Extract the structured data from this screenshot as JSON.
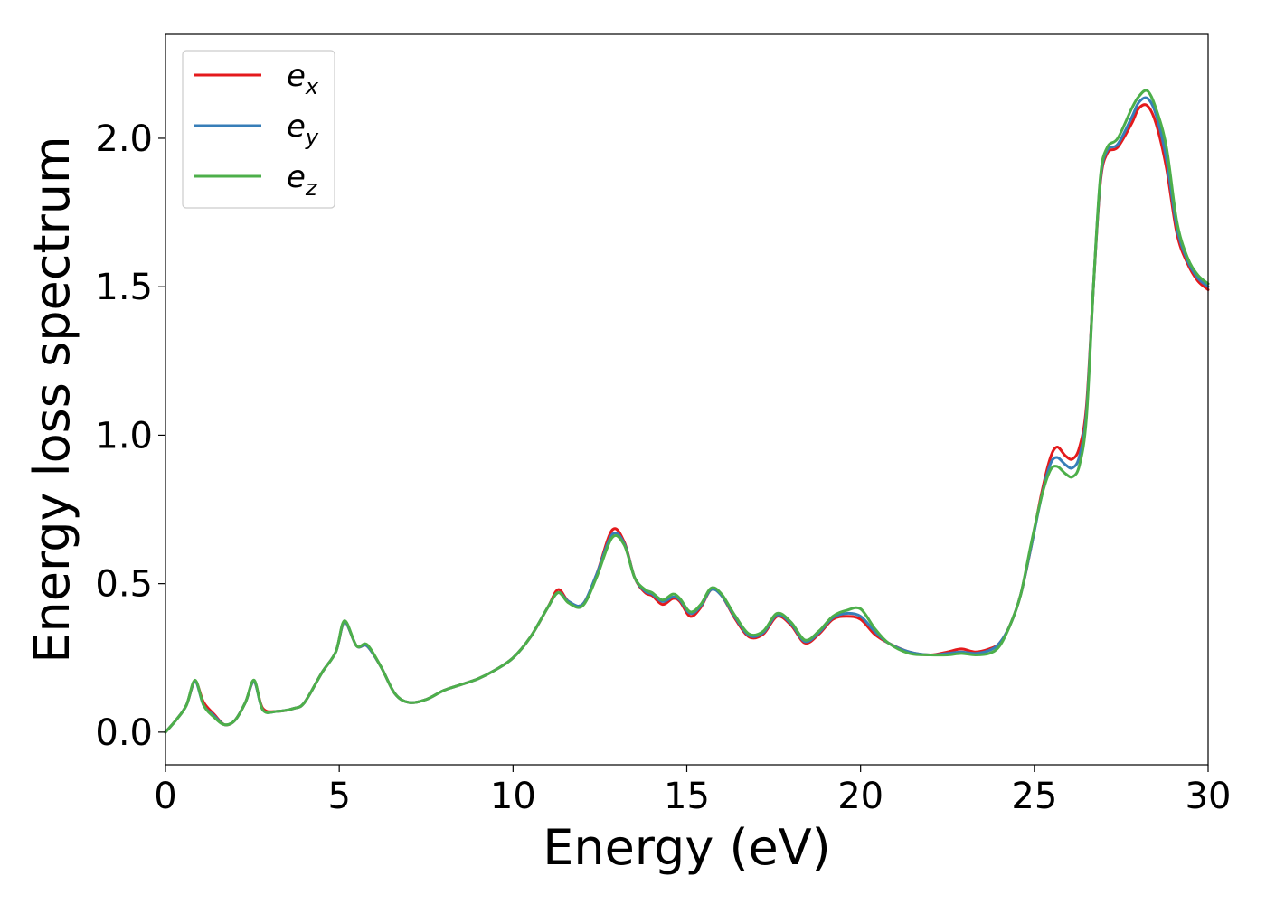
{
  "chart_data": {
    "type": "line",
    "xlabel": "Energy (eV)",
    "ylabel": "Energy loss spectrum",
    "xlim": [
      0,
      30
    ],
    "ylim": [
      -0.11,
      2.35
    ],
    "xticks": [
      0,
      5,
      10,
      15,
      20,
      25,
      30
    ],
    "xtick_labels": [
      "0",
      "5",
      "10",
      "15",
      "20",
      "25",
      "30"
    ],
    "yticks": [
      0.0,
      0.5,
      1.0,
      1.5,
      2.0
    ],
    "ytick_labels": [
      "0.0",
      "0.5",
      "1.0",
      "1.5",
      "2.0"
    ],
    "grid": false,
    "legend_position": "top-left",
    "series": [
      {
        "name": "e",
        "subscript": "x",
        "color": "#e41a1c",
        "x": [
          0,
          0.3,
          0.6,
          0.85,
          1.1,
          1.4,
          1.7,
          2.0,
          2.3,
          2.55,
          2.8,
          3.2,
          3.7,
          4.0,
          4.5,
          4.9,
          5.15,
          5.5,
          5.8,
          6.2,
          6.6,
          7.0,
          7.5,
          8.0,
          8.5,
          9.0,
          9.5,
          10.0,
          10.5,
          11.0,
          11.3,
          11.6,
          12.0,
          12.4,
          12.85,
          13.2,
          13.5,
          13.8,
          14.0,
          14.3,
          14.6,
          14.8,
          15.1,
          15.4,
          15.7,
          16.0,
          16.4,
          16.8,
          17.2,
          17.6,
          18.0,
          18.4,
          18.8,
          19.2,
          19.6,
          20.0,
          20.4,
          20.8,
          21.4,
          22.0,
          22.5,
          22.9,
          23.3,
          23.7,
          24.0,
          24.3,
          24.6,
          24.9,
          25.2,
          25.45,
          25.65,
          25.9,
          26.1,
          26.3,
          26.5,
          26.7,
          26.9,
          27.1,
          27.4,
          27.8,
          28.0,
          28.25,
          28.5,
          28.8,
          29.1,
          29.4,
          29.7,
          30.0
        ],
        "y": [
          0.0,
          0.04,
          0.09,
          0.17,
          0.1,
          0.06,
          0.025,
          0.04,
          0.1,
          0.17,
          0.08,
          0.07,
          0.08,
          0.1,
          0.2,
          0.27,
          0.37,
          0.29,
          0.29,
          0.22,
          0.13,
          0.1,
          0.11,
          0.14,
          0.16,
          0.18,
          0.21,
          0.25,
          0.32,
          0.42,
          0.48,
          0.44,
          0.43,
          0.53,
          0.68,
          0.64,
          0.52,
          0.47,
          0.46,
          0.43,
          0.45,
          0.44,
          0.39,
          0.42,
          0.48,
          0.46,
          0.38,
          0.32,
          0.33,
          0.39,
          0.36,
          0.3,
          0.33,
          0.38,
          0.39,
          0.38,
          0.33,
          0.3,
          0.27,
          0.26,
          0.27,
          0.28,
          0.27,
          0.28,
          0.3,
          0.36,
          0.46,
          0.62,
          0.8,
          0.92,
          0.96,
          0.93,
          0.92,
          0.96,
          1.1,
          1.5,
          1.85,
          1.95,
          1.97,
          2.05,
          2.1,
          2.11,
          2.05,
          1.9,
          1.68,
          1.58,
          1.52,
          1.49
        ]
      },
      {
        "name": "e",
        "subscript": "y",
        "color": "#377eb8",
        "x": [
          0,
          0.3,
          0.6,
          0.85,
          1.1,
          1.4,
          1.7,
          2.0,
          2.3,
          2.55,
          2.8,
          3.2,
          3.7,
          4.0,
          4.5,
          4.9,
          5.15,
          5.5,
          5.8,
          6.2,
          6.6,
          7.0,
          7.5,
          8.0,
          8.5,
          9.0,
          9.5,
          10.0,
          10.5,
          11.0,
          11.3,
          11.6,
          12.0,
          12.4,
          12.85,
          13.2,
          13.5,
          13.8,
          14.0,
          14.3,
          14.6,
          14.8,
          15.1,
          15.4,
          15.7,
          16.0,
          16.4,
          16.8,
          17.2,
          17.6,
          18.0,
          18.4,
          18.8,
          19.2,
          19.6,
          20.0,
          20.4,
          20.8,
          21.4,
          22.0,
          22.5,
          22.9,
          23.3,
          23.7,
          24.0,
          24.3,
          24.6,
          24.9,
          25.2,
          25.45,
          25.65,
          25.9,
          26.1,
          26.3,
          26.5,
          26.7,
          26.9,
          27.1,
          27.4,
          27.8,
          28.0,
          28.25,
          28.5,
          28.8,
          29.1,
          29.4,
          29.7,
          30.0
        ],
        "y": [
          0.0,
          0.04,
          0.09,
          0.17,
          0.09,
          0.055,
          0.025,
          0.04,
          0.1,
          0.17,
          0.075,
          0.07,
          0.08,
          0.1,
          0.2,
          0.27,
          0.37,
          0.29,
          0.29,
          0.22,
          0.13,
          0.1,
          0.11,
          0.14,
          0.16,
          0.18,
          0.21,
          0.25,
          0.32,
          0.42,
          0.47,
          0.44,
          0.43,
          0.53,
          0.665,
          0.635,
          0.52,
          0.475,
          0.465,
          0.44,
          0.455,
          0.445,
          0.4,
          0.425,
          0.48,
          0.46,
          0.385,
          0.325,
          0.335,
          0.395,
          0.365,
          0.305,
          0.335,
          0.385,
          0.4,
          0.39,
          0.34,
          0.3,
          0.27,
          0.26,
          0.265,
          0.27,
          0.265,
          0.275,
          0.3,
          0.36,
          0.46,
          0.62,
          0.79,
          0.9,
          0.925,
          0.9,
          0.89,
          0.93,
          1.08,
          1.5,
          1.86,
          1.96,
          1.98,
          2.07,
          2.12,
          2.135,
          2.08,
          1.93,
          1.7,
          1.59,
          1.53,
          1.5
        ]
      },
      {
        "name": "e",
        "subscript": "z",
        "color": "#4daf4a",
        "x": [
          0,
          0.3,
          0.6,
          0.85,
          1.1,
          1.4,
          1.7,
          2.0,
          2.3,
          2.55,
          2.8,
          3.2,
          3.7,
          4.0,
          4.5,
          4.9,
          5.15,
          5.5,
          5.8,
          6.2,
          6.6,
          7.0,
          7.5,
          8.0,
          8.5,
          9.0,
          9.5,
          10.0,
          10.5,
          11.0,
          11.3,
          11.6,
          12.0,
          12.4,
          12.85,
          13.2,
          13.5,
          13.8,
          14.0,
          14.3,
          14.6,
          14.8,
          15.1,
          15.4,
          15.7,
          16.0,
          16.4,
          16.8,
          17.2,
          17.6,
          18.0,
          18.4,
          18.8,
          19.2,
          19.6,
          20.0,
          20.4,
          20.8,
          21.4,
          22.0,
          22.5,
          22.9,
          23.3,
          23.7,
          24.0,
          24.3,
          24.6,
          24.9,
          25.2,
          25.45,
          25.65,
          25.9,
          26.1,
          26.3,
          26.5,
          26.7,
          26.9,
          27.1,
          27.4,
          27.8,
          28.0,
          28.25,
          28.5,
          28.8,
          29.1,
          29.4,
          29.7,
          30.0
        ],
        "y": [
          0.0,
          0.04,
          0.09,
          0.175,
          0.09,
          0.05,
          0.025,
          0.04,
          0.1,
          0.175,
          0.075,
          0.07,
          0.08,
          0.1,
          0.2,
          0.27,
          0.375,
          0.29,
          0.295,
          0.22,
          0.13,
          0.1,
          0.11,
          0.14,
          0.16,
          0.18,
          0.21,
          0.25,
          0.32,
          0.42,
          0.47,
          0.435,
          0.425,
          0.52,
          0.655,
          0.63,
          0.52,
          0.48,
          0.47,
          0.445,
          0.465,
          0.45,
          0.405,
          0.43,
          0.485,
          0.465,
          0.39,
          0.33,
          0.34,
          0.4,
          0.37,
          0.31,
          0.34,
          0.39,
          0.41,
          0.415,
          0.35,
          0.3,
          0.265,
          0.26,
          0.26,
          0.265,
          0.26,
          0.265,
          0.29,
          0.36,
          0.46,
          0.63,
          0.79,
          0.88,
          0.895,
          0.87,
          0.86,
          0.9,
          1.06,
          1.5,
          1.87,
          1.97,
          2.0,
          2.1,
          2.14,
          2.16,
          2.1,
          1.97,
          1.72,
          1.6,
          1.54,
          1.51
        ]
      }
    ]
  }
}
